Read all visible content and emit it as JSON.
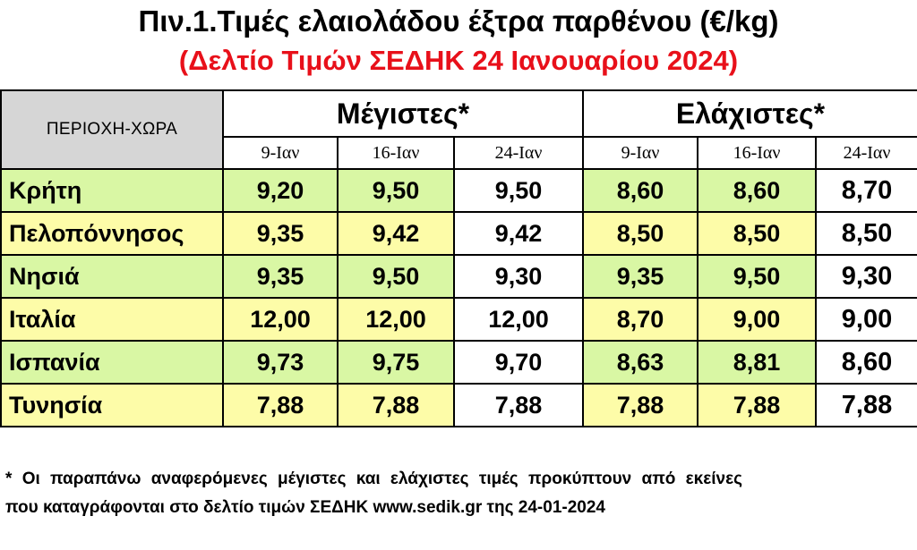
{
  "title": "Πιν.1.Τιμές ελαιολάδου έξτρα παρθένου (€/kg)",
  "subtitle": "(Δελτίο Τιμών ΣΕΔΗΚ 24 Ιανουαρίου 2024)",
  "colors": {
    "subtitle": "#e8101a",
    "green_row": "#d9f7a4",
    "yellow_row": "#fdfca8",
    "header_grey": "#d6d6d6"
  },
  "table": {
    "region_header": "ΠΕΡΙΟΧΗ-ΧΩΡΑ",
    "max_header": "Μέγιστες*",
    "min_header": "Ελάχιστες*",
    "max_dates": [
      "9-Ιαν",
      "16-Ιαν",
      "24-Ιαν"
    ],
    "min_dates": [
      "9-Ιαν",
      "16-Ιαν",
      "24-Ιαν"
    ],
    "rows": [
      {
        "region": "Κρήτη",
        "max": [
          "9,20",
          "9,50",
          "9,50"
        ],
        "min": [
          "8,60",
          "8,60",
          "8,70"
        ]
      },
      {
        "region": "Πελοπόννησος",
        "max": [
          "9,35",
          "9,42",
          "9,42"
        ],
        "min": [
          "8,50",
          "8,50",
          "8,50"
        ]
      },
      {
        "region": "Νησιά",
        "max": [
          "9,35",
          "9,50",
          "9,30"
        ],
        "min": [
          "9,35",
          "9,50",
          "9,30"
        ]
      },
      {
        "region": "Ιταλία",
        "max": [
          "12,00",
          "12,00",
          "12,00"
        ],
        "min": [
          "8,70",
          "9,00",
          "9,00"
        ]
      },
      {
        "region": "Ισπανία",
        "max": [
          "9,73",
          "9,75",
          "9,70"
        ],
        "min": [
          "8,63",
          "8,81",
          "8,60"
        ]
      },
      {
        "region": "Τυνησία",
        "max": [
          "7,88",
          "7,88",
          "7,88"
        ],
        "min": [
          "7,88",
          "7,88",
          "7,88"
        ]
      }
    ]
  },
  "footnote": {
    "star": "*",
    "line1": "Οι παραπάνω αναφερόμενες μέγιστες και ελάχιστες τιμές προκύπτουν από εκείνες",
    "line2": "που καταγράφονται στο δελτίο τιμών ΣΕΔΗΚ www.sedik.gr της 24-01-2024"
  }
}
